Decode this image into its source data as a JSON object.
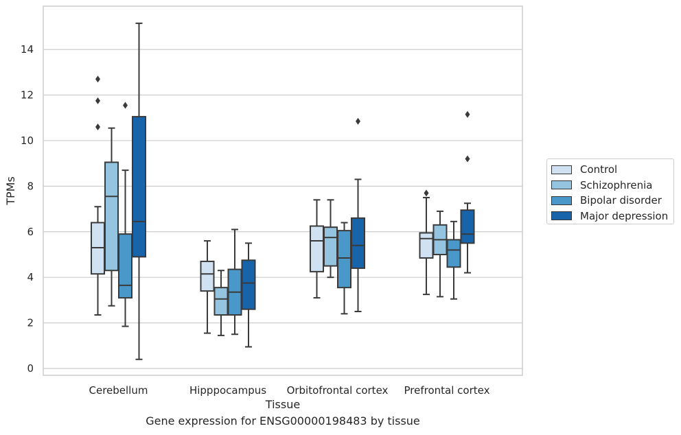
{
  "chart_data": {
    "type": "box",
    "title": "",
    "caption": "Gene expression for ENSG00000198483 by tissue",
    "xlabel": "Tissue",
    "ylabel": "TPMs",
    "ylim": [
      -0.3,
      15.9
    ],
    "yticks": [
      0,
      2,
      4,
      6,
      8,
      10,
      12,
      14
    ],
    "grid": "horizontal",
    "legend_position": "right",
    "categories": [
      "Cerebellum",
      "Hipppocampus",
      "Orbitofrontal cortex",
      "Prefrontal cortex"
    ],
    "series": [
      {
        "name": "Control",
        "color": "#d0e1f2",
        "boxes": [
          {
            "whisker_low": 2.35,
            "q1": 4.15,
            "median": 5.3,
            "q3": 6.4,
            "whisker_high": 7.1,
            "outliers": [
              10.6,
              11.75,
              12.7
            ]
          },
          {
            "whisker_low": 1.55,
            "q1": 3.4,
            "median": 4.15,
            "q3": 4.7,
            "whisker_high": 5.6,
            "outliers": []
          },
          {
            "whisker_low": 3.1,
            "q1": 4.25,
            "median": 5.6,
            "q3": 6.25,
            "whisker_high": 7.4,
            "outliers": []
          },
          {
            "whisker_low": 3.25,
            "q1": 4.85,
            "median": 5.7,
            "q3": 5.95,
            "whisker_high": 7.5,
            "outliers": [
              7.7
            ]
          }
        ]
      },
      {
        "name": "Schizophrenia",
        "color": "#94c4df",
        "boxes": [
          {
            "whisker_low": 2.75,
            "q1": 4.3,
            "median": 7.55,
            "q3": 9.05,
            "whisker_high": 10.55,
            "outliers": []
          },
          {
            "whisker_low": 1.45,
            "q1": 2.35,
            "median": 3.05,
            "q3": 3.55,
            "whisker_high": 4.3,
            "outliers": []
          },
          {
            "whisker_low": 4.0,
            "q1": 4.5,
            "median": 5.75,
            "q3": 6.2,
            "whisker_high": 7.4,
            "outliers": []
          },
          {
            "whisker_low": 3.15,
            "q1": 5.0,
            "median": 5.65,
            "q3": 6.3,
            "whisker_high": 6.9,
            "outliers": []
          }
        ]
      },
      {
        "name": "Bipolar disorder",
        "color": "#4a98c9",
        "boxes": [
          {
            "whisker_low": 1.85,
            "q1": 3.1,
            "median": 3.65,
            "q3": 5.9,
            "whisker_high": 8.7,
            "outliers": [
              11.55
            ]
          },
          {
            "whisker_low": 1.5,
            "q1": 2.35,
            "median": 3.35,
            "q3": 4.35,
            "whisker_high": 6.1,
            "outliers": []
          },
          {
            "whisker_low": 2.4,
            "q1": 3.55,
            "median": 4.85,
            "q3": 6.05,
            "whisker_high": 6.4,
            "outliers": []
          },
          {
            "whisker_low": 3.05,
            "q1": 4.45,
            "median": 5.2,
            "q3": 5.65,
            "whisker_high": 6.45,
            "outliers": []
          }
        ]
      },
      {
        "name": "Major depression",
        "color": "#1764ab",
        "boxes": [
          {
            "whisker_low": 0.4,
            "q1": 4.9,
            "median": 6.45,
            "q3": 11.05,
            "whisker_high": 15.15,
            "outliers": []
          },
          {
            "whisker_low": 0.95,
            "q1": 2.6,
            "median": 3.75,
            "q3": 4.75,
            "whisker_high": 5.5,
            "outliers": []
          },
          {
            "whisker_low": 2.5,
            "q1": 4.4,
            "median": 5.4,
            "q3": 6.6,
            "whisker_high": 8.3,
            "outliers": [
              10.85
            ]
          },
          {
            "whisker_low": 4.2,
            "q1": 5.5,
            "median": 5.9,
            "q3": 6.95,
            "whisker_high": 7.25,
            "outliers": [
              9.2,
              11.15
            ]
          }
        ]
      }
    ]
  }
}
